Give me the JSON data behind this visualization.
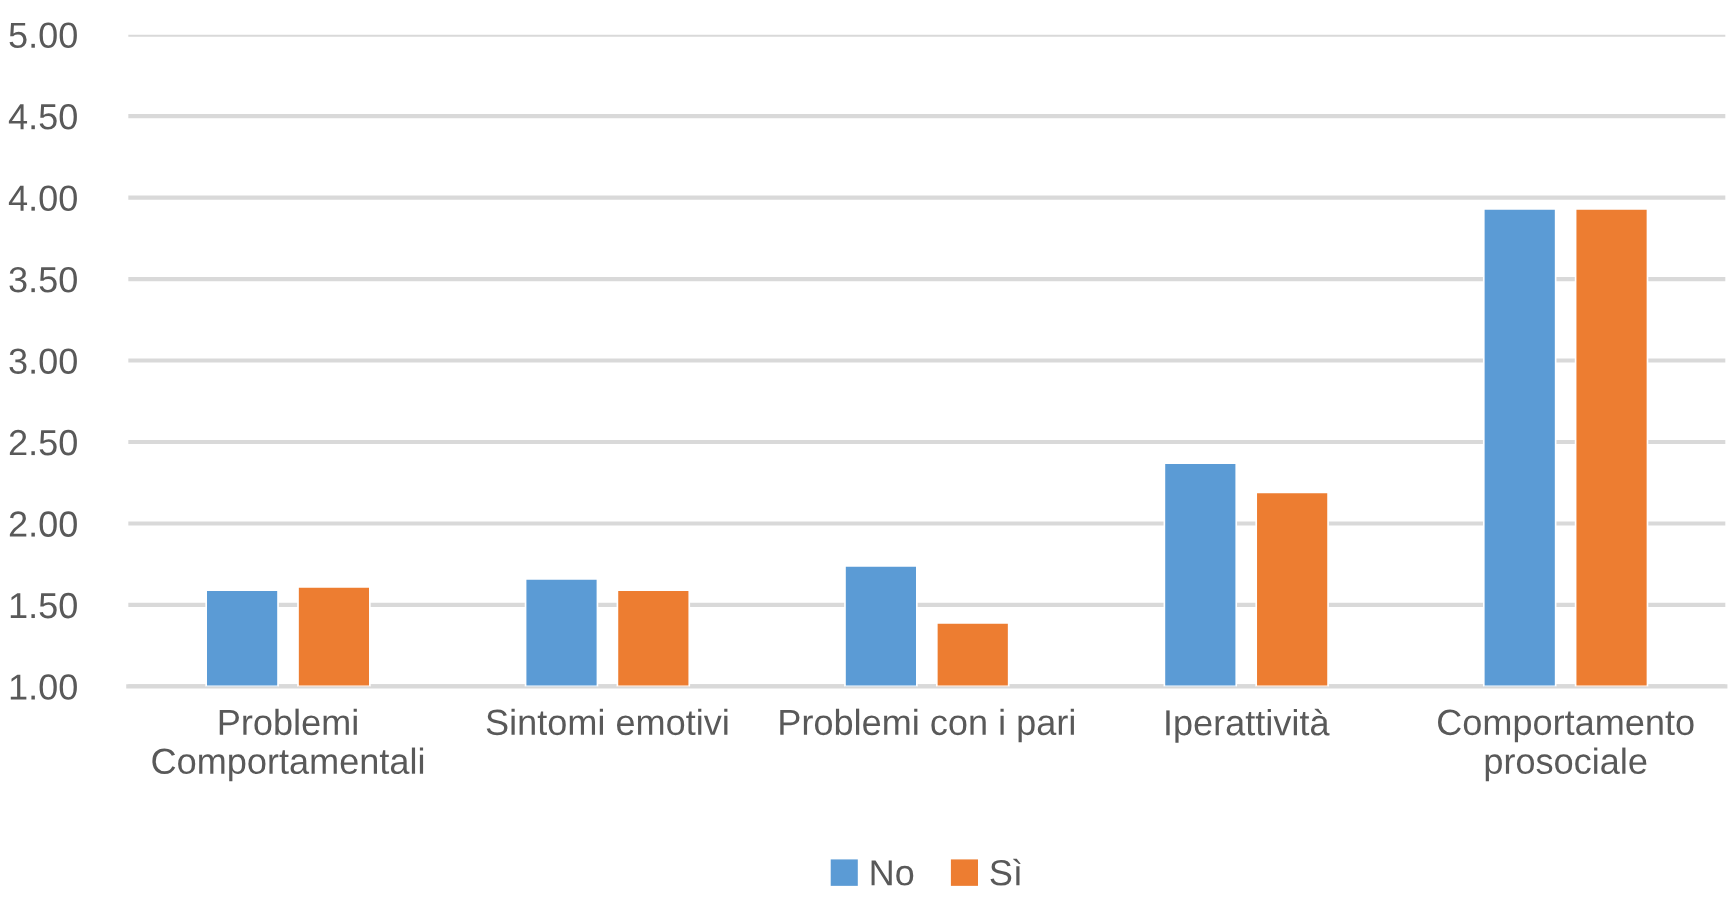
{
  "chart_data": {
    "type": "bar",
    "categories": [
      "Problemi\nComportamentali",
      "Sintomi emotivi",
      "Problemi con i pari",
      "Iperattività",
      "Comportamento\nprosociale"
    ],
    "series": [
      {
        "name": "No",
        "color": "#5b9bd5",
        "values": [
          1.59,
          1.66,
          1.74,
          2.37,
          3.93
        ]
      },
      {
        "name": "Sì",
        "color": "#ed7d31",
        "values": [
          1.61,
          1.59,
          1.39,
          2.19,
          3.93
        ]
      }
    ],
    "ylim": [
      1.0,
      5.0
    ],
    "yticks": [
      {
        "value": 1.0,
        "label": "1.00"
      },
      {
        "value": 1.5,
        "label": "1.50"
      },
      {
        "value": 2.0,
        "label": "2.00"
      },
      {
        "value": 2.5,
        "label": "2.50"
      },
      {
        "value": 3.0,
        "label": "3.00"
      },
      {
        "value": 3.5,
        "label": "3.50"
      },
      {
        "value": 4.0,
        "label": "4.00"
      },
      {
        "value": 4.5,
        "label": "4.50"
      },
      {
        "value": 5.0,
        "label": "5.00"
      }
    ],
    "grid": "y",
    "legend": "bottom"
  }
}
